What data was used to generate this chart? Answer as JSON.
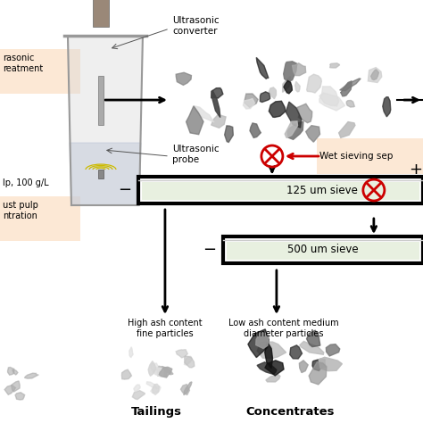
{
  "bg_color": "#ffffff",
  "peach_box_color": "#fce8d5",
  "green_box_color": "#e8f0e0",
  "arrow_color": "#000000",
  "red_arrow_color": "#cc0000",
  "cross_color": "#cc0000",
  "label_ultrasonic_converter": "Ultrasonic\nconverter",
  "label_ultrasonic_probe": "Ultrasonic\nprobe",
  "label_wet_sieving": "Wet sieving sep",
  "label_125_sieve": "125 um sieve",
  "label_500_sieve": "500 um sieve",
  "label_high_ash": "High ash content\nfine particles",
  "label_low_ash": "Low ash content medium\ndiameter particles",
  "label_tailings": "Tailings",
  "label_concentrates": "Concentrates",
  "label_pulp": "lp, 100 g/L",
  "label_just_pulp": "ust pulp\nntration"
}
